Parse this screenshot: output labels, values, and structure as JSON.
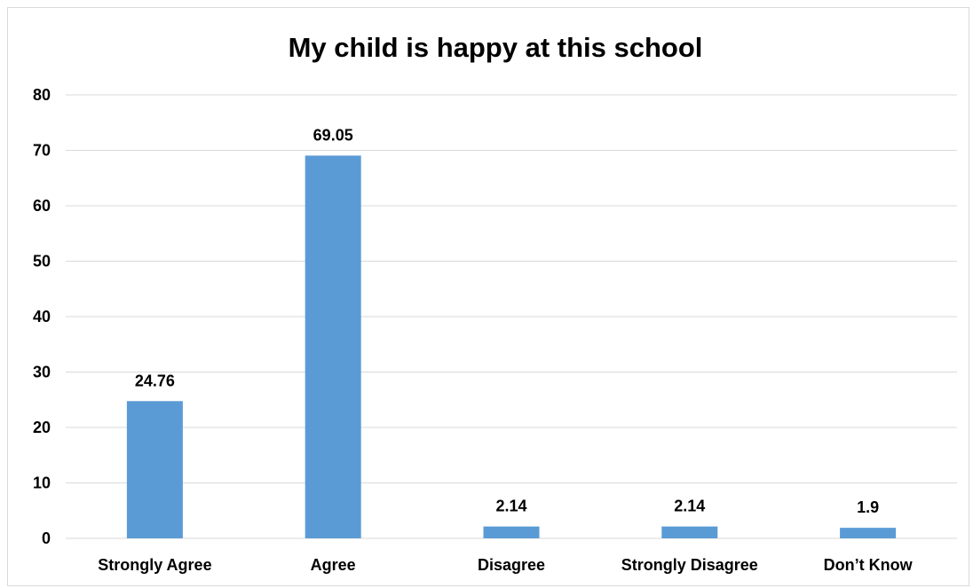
{
  "chart_data": {
    "type": "bar",
    "title": "My child is happy at this school",
    "categories": [
      "Strongly Agree",
      "Agree",
      "Disagree",
      "Strongly Disagree",
      "Don’t Know"
    ],
    "values": [
      24.76,
      69.05,
      2.14,
      2.14,
      1.9
    ],
    "data_labels": [
      "24.76",
      "69.05",
      "2.14",
      "2.14",
      "1.9"
    ],
    "ylim": [
      0,
      80
    ],
    "yticks": [
      "0",
      "10",
      "20",
      "30",
      "40",
      "50",
      "60",
      "70",
      "80"
    ],
    "xlabel": "",
    "ylabel": "",
    "grid": true,
    "legend": "none",
    "bar_color": "#5b9bd5"
  }
}
